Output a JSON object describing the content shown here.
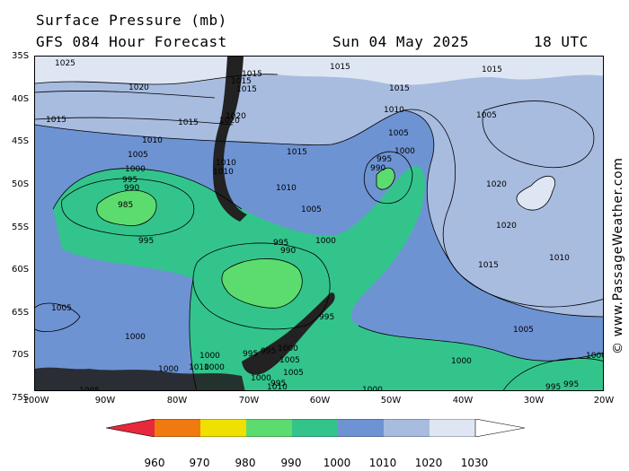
{
  "header": {
    "title": "Surface Pressure (mb)",
    "subtitle": "GFS 084 Hour Forecast",
    "date": "Sun 04 May 2025",
    "time": "18 UTC"
  },
  "credit": "© www.PassageWeather.com",
  "map": {
    "lat_labels": [
      "35S",
      "40S",
      "45S",
      "50S",
      "55S",
      "60S",
      "65S",
      "70S",
      "75S"
    ],
    "lon_labels": [
      "100W",
      "90W",
      "80W",
      "70W",
      "60W",
      "50W",
      "40W",
      "30W",
      "20W"
    ],
    "isobar_labels": [
      "1025",
      "1015",
      "1015",
      "1015",
      "1015",
      "1015",
      "1020",
      "1015",
      "1020",
      "1015",
      "1015",
      "1020",
      "1010",
      "1010",
      "1005",
      "1010",
      "1015",
      "1005",
      "1000",
      "1005",
      "1000",
      "1010",
      "995",
      "990",
      "995",
      "990",
      "1010",
      "985",
      "1020",
      "1005",
      "995",
      "1000",
      "1020",
      "995",
      "990",
      "1015",
      "1010",
      "1005",
      "995",
      "1005",
      "1000",
      "1000",
      "995",
      "1000",
      "995",
      "1000",
      "1000",
      "1005",
      "1000",
      "1010",
      "1000",
      "1005",
      "1010",
      "1000",
      "1000",
      "1000",
      "995",
      "995",
      "1000",
      "1005",
      "1000",
      "1010",
      "1010",
      "1000",
      "995",
      "995"
    ],
    "fill_colors": {
      "p1030": "#dfe6f3",
      "p1020": "#a8bce0",
      "p1010": "#6e93d3",
      "p1000": "#33c48c",
      "p990": "#5cdc6e",
      "p980": "#f0e000"
    }
  },
  "colorbar": {
    "labels": [
      "960",
      "970",
      "980",
      "990",
      "1000",
      "1010",
      "1020",
      "1030"
    ],
    "colors": [
      "#e8283c",
      "#f07a10",
      "#f0e000",
      "#5cdc6e",
      "#33c48c",
      "#6e93d3",
      "#a8bce0",
      "#dfe6f3"
    ]
  }
}
